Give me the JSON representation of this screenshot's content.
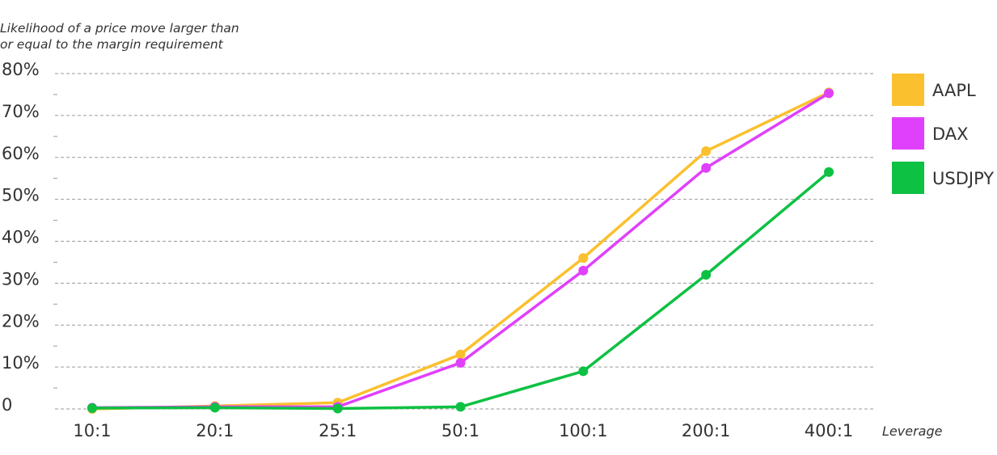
{
  "chart_data": {
    "type": "line",
    "title": "",
    "ylabel_lines": [
      "Likelihood of a price move larger than",
      "or equal to the margin requirement"
    ],
    "xlabel": "Leverage",
    "categories": [
      "10:1",
      "20:1",
      "25:1",
      "50:1",
      "100:1",
      "200:1",
      "400:1"
    ],
    "yticks": [
      {
        "value": 0,
        "label": "0"
      },
      {
        "value": 10,
        "label": "10%"
      },
      {
        "value": 20,
        "label": "20%"
      },
      {
        "value": 30,
        "label": "30%"
      },
      {
        "value": 40,
        "label": "40%"
      },
      {
        "value": 50,
        "label": "50%"
      },
      {
        "value": 60,
        "label": "60%"
      },
      {
        "value": 70,
        "label": "70%"
      },
      {
        "value": 80,
        "label": "80%"
      }
    ],
    "ylim": [
      0,
      80
    ],
    "grid": true,
    "legend_position": "right",
    "series": [
      {
        "name": "AAPL",
        "color": "#FBC02D",
        "values": [
          0,
          0.7,
          1.5,
          13,
          36,
          61.5,
          75.5
        ]
      },
      {
        "name": "DAX",
        "color": "#E040FB",
        "values": [
          0.3,
          0.5,
          0.5,
          11,
          33,
          57.5,
          75.3
        ]
      },
      {
        "name": "USDJPY",
        "color": "#0DC143",
        "values": [
          0.2,
          0.3,
          0.1,
          0.5,
          9,
          32,
          56.5
        ]
      }
    ]
  }
}
